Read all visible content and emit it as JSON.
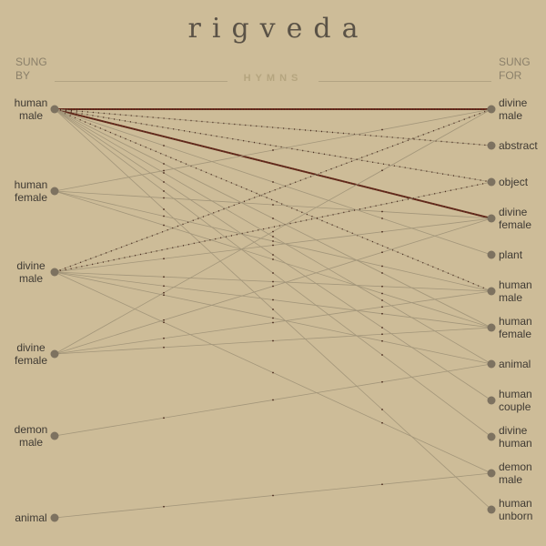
{
  "title": "rigveda",
  "sung_by_header": "SUNG\nBY",
  "sung_for_header": "SUNG\nFOR",
  "center_label": "HYMNS",
  "colors": {
    "background": "#cdbc98",
    "node": "#7d7260",
    "thin_link": "#a3967a",
    "strong_link": "#6b2a1c",
    "dots": "#4a2a1c"
  },
  "sung_by": [
    {
      "id": "human-male",
      "label": "human\nmale"
    },
    {
      "id": "human-female",
      "label": "human\nfemale"
    },
    {
      "id": "divine-male",
      "label": "divine\nmale"
    },
    {
      "id": "divine-female",
      "label": "divine\nfemale"
    },
    {
      "id": "demon-male",
      "label": "demon\nmale"
    },
    {
      "id": "animal",
      "label": "animal"
    }
  ],
  "sung_for": [
    {
      "id": "divine-male",
      "label": "divine\nmale"
    },
    {
      "id": "abstract",
      "label": "abstract"
    },
    {
      "id": "object",
      "label": "object"
    },
    {
      "id": "divine-female",
      "label": "divine\nfemale"
    },
    {
      "id": "plant",
      "label": "plant"
    },
    {
      "id": "human-male",
      "label": "human\nmale"
    },
    {
      "id": "human-female",
      "label": "human\nfemale"
    },
    {
      "id": "animal",
      "label": "animal"
    },
    {
      "id": "human-couple",
      "label": "human\ncouple"
    },
    {
      "id": "divine-human",
      "label": "divine\nhuman"
    },
    {
      "id": "demon-male",
      "label": "demon\nmale"
    },
    {
      "id": "human-unborn",
      "label": "human\nunborn"
    }
  ],
  "links": [
    {
      "from": 0,
      "to": 0,
      "style": "strong"
    },
    {
      "from": 0,
      "to": 3,
      "style": "strong"
    },
    {
      "from": 0,
      "to": 1,
      "style": "dotted"
    },
    {
      "from": 0,
      "to": 2,
      "style": "dotted"
    },
    {
      "from": 0,
      "to": 5,
      "style": "dotted"
    },
    {
      "from": 0,
      "to": 4,
      "style": "thin"
    },
    {
      "from": 0,
      "to": 6,
      "style": "thin"
    },
    {
      "from": 0,
      "to": 7,
      "style": "thin"
    },
    {
      "from": 0,
      "to": 8,
      "style": "thin"
    },
    {
      "from": 0,
      "to": 9,
      "style": "thin"
    },
    {
      "from": 0,
      "to": 11,
      "style": "thin"
    },
    {
      "from": 1,
      "to": 0,
      "style": "thin"
    },
    {
      "from": 1,
      "to": 3,
      "style": "thin"
    },
    {
      "from": 1,
      "to": 5,
      "style": "thin"
    },
    {
      "from": 1,
      "to": 6,
      "style": "thin"
    },
    {
      "from": 2,
      "to": 0,
      "style": "dotted"
    },
    {
      "from": 2,
      "to": 2,
      "style": "dotted"
    },
    {
      "from": 2,
      "to": 3,
      "style": "thin"
    },
    {
      "from": 2,
      "to": 5,
      "style": "thin"
    },
    {
      "from": 2,
      "to": 6,
      "style": "thin"
    },
    {
      "from": 2,
      "to": 7,
      "style": "thin"
    },
    {
      "from": 2,
      "to": 10,
      "style": "thin"
    },
    {
      "from": 3,
      "to": 0,
      "style": "thin"
    },
    {
      "from": 3,
      "to": 3,
      "style": "thin"
    },
    {
      "from": 3,
      "to": 5,
      "style": "thin"
    },
    {
      "from": 3,
      "to": 6,
      "style": "thin"
    },
    {
      "from": 4,
      "to": 7,
      "style": "thin"
    },
    {
      "from": 5,
      "to": 10,
      "style": "thin"
    }
  ]
}
